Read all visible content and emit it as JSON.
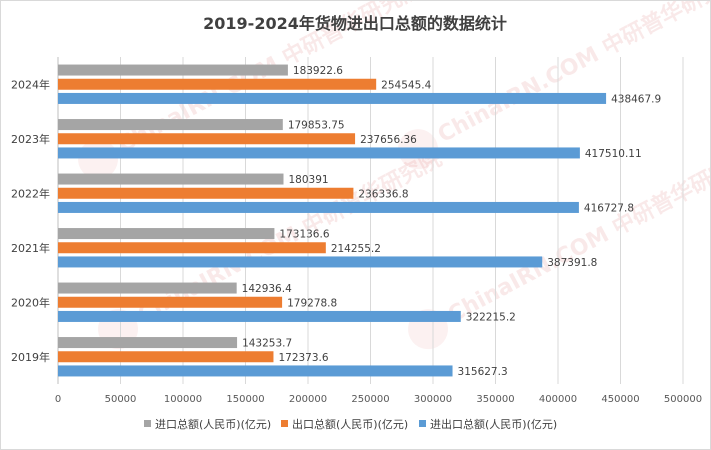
{
  "chart_data": {
    "type": "bar",
    "orientation": "horizontal",
    "title": "2019-2024年货物进出口总额的数据统计",
    "categories": [
      "2024年",
      "2023年",
      "2022年",
      "2021年",
      "2020年",
      "2019年"
    ],
    "series": [
      {
        "name": "进口总额(人民币)(亿元)",
        "color": "#a5a5a5",
        "values": [
          183922.6,
          179853.75,
          180391,
          173136.6,
          142936.4,
          143253.7
        ],
        "labels": [
          "183922.6",
          "179853.75",
          "180391",
          "173136.6",
          "142936.4",
          "143253.7"
        ]
      },
      {
        "name": "出口总额(人民币)(亿元)",
        "color": "#ed7d31",
        "values": [
          254545.4,
          237656.36,
          236336.8,
          214255.2,
          179278.8,
          172373.6
        ],
        "labels": [
          "254545.4",
          "237656.36",
          "236336.8",
          "214255.2",
          "179278.8",
          "172373.6"
        ]
      },
      {
        "name": "进出口总额(人民币)(亿元)",
        "color": "#5b9bd5",
        "values": [
          438467.9,
          417510.11,
          416727.8,
          387391.8,
          322215.2,
          315627.3
        ],
        "labels": [
          "438467.9",
          "417510.11",
          "416727.8",
          "387391.8",
          "322215.2",
          "315627.3"
        ]
      }
    ],
    "xlim": [
      0,
      500000
    ],
    "xticks": [
      "0",
      "50000",
      "100000",
      "150000",
      "200000",
      "250000",
      "300000",
      "350000",
      "400000",
      "450000",
      "500000"
    ],
    "grid": true,
    "legend_position": "bottom"
  },
  "watermark": {
    "text": "ChinaIRN.COM 中研普华研究院"
  }
}
